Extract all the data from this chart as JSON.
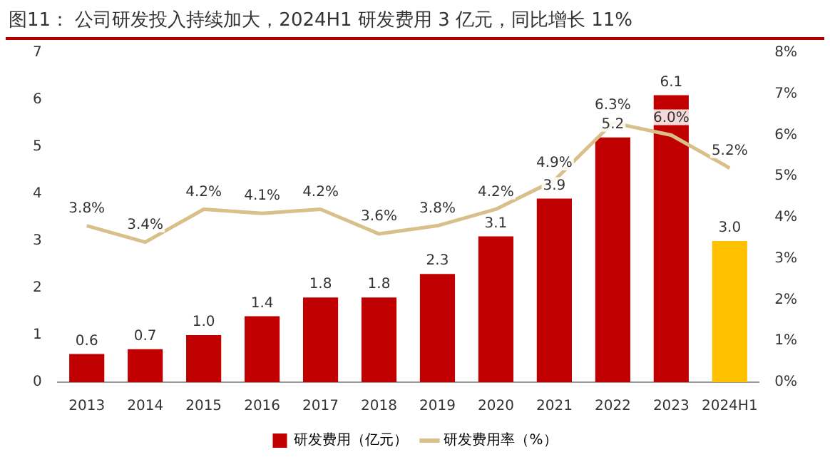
{
  "chart_data": {
    "type": "bar",
    "title": "图11：  公司研发投入持续加大，2024H1 研发费用 3 亿元，同比增长 11%",
    "categories": [
      "2013",
      "2014",
      "2015",
      "2016",
      "2017",
      "2018",
      "2019",
      "2020",
      "2021",
      "2022",
      "2023",
      "2024H1"
    ],
    "series": [
      {
        "name": "研发费用（亿元）",
        "color": "#c00000",
        "colors": [
          "#c00000",
          "#c00000",
          "#c00000",
          "#c00000",
          "#c00000",
          "#c00000",
          "#c00000",
          "#c00000",
          "#c00000",
          "#c00000",
          "#c00000",
          "#ffc000"
        ],
        "values": [
          0.6,
          0.7,
          1.0,
          1.4,
          1.8,
          1.8,
          2.3,
          3.1,
          3.9,
          5.2,
          6.1,
          3.0
        ],
        "value_labels": [
          "0.6",
          "0.7",
          "1.0",
          "1.4",
          "1.8",
          "1.8",
          "2.3",
          "3.1",
          "3.9",
          "5.2",
          "6.1",
          "3.0"
        ]
      },
      {
        "name": "研发费用率（%）",
        "type": "line",
        "axis": "y2",
        "color": "#d9c08a",
        "values": [
          3.8,
          3.4,
          4.2,
          4.1,
          4.2,
          3.6,
          3.8,
          4.2,
          4.9,
          6.3,
          6.0,
          5.2
        ],
        "value_labels": [
          "3.8%",
          "3.4%",
          "4.2%",
          "4.1%",
          "4.2%",
          "3.6%",
          "3.8%",
          "4.2%",
          "4.9%",
          "6.3%",
          "6.0%",
          "5.2%"
        ]
      }
    ],
    "ylim": [
      0,
      7
    ],
    "yticks": [
      0,
      1,
      2,
      3,
      4,
      5,
      6,
      7
    ],
    "y2lim": [
      0,
      8
    ],
    "y2ticks": [
      {
        "value": 0,
        "label": "0%"
      },
      {
        "value": 1,
        "label": "1%"
      },
      {
        "value": 2,
        "label": "2%"
      },
      {
        "value": 3,
        "label": "3%"
      },
      {
        "value": 4,
        "label": "4%"
      },
      {
        "value": 5,
        "label": "5%"
      },
      {
        "value": 6,
        "label": "6%"
      },
      {
        "value": 7,
        "label": "7%"
      },
      {
        "value": 8,
        "label": "8%"
      }
    ],
    "legend": "bottom",
    "marker": "none",
    "grid": false
  }
}
